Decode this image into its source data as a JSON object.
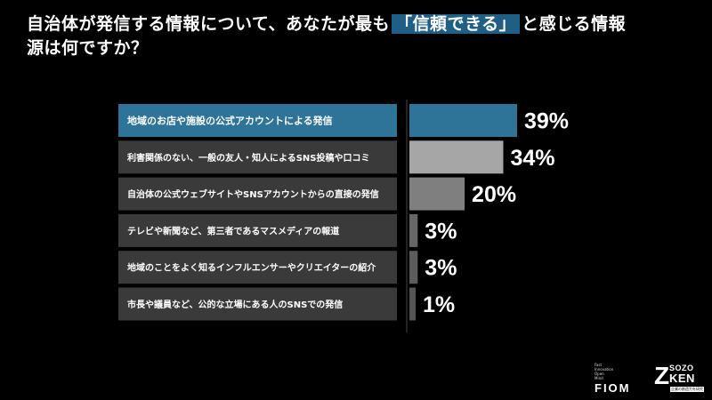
{
  "title": {
    "line1_pre": "自治体が発信する情報について、あなたが最も",
    "highlight": "「信頼できる」",
    "line1_post": "と感じる情報",
    "line2": "源は何ですか？"
  },
  "chart_data": {
    "type": "bar",
    "orientation": "horizontal",
    "categories": [
      "地域のお店や施設の公式アカウントによる発信",
      "利害関係のない、一般の友人・知人によるSNS投稿や口コミ",
      "自治体の公式ウェブサイトやSNSアカウントからの直接の発信",
      "テレビや新聞など、第三者であるマスメディアの報道",
      "地域のことをよく知るインフルエンサーやクリエイターの紹介",
      "市長や議員など、公的な立場にある人のSNSでの発信"
    ],
    "values": [
      39,
      34,
      20,
      3,
      3,
      1
    ],
    "value_labels": [
      "39%",
      "34%",
      "20%",
      "3%",
      "3%",
      "1%"
    ],
    "unit": "%",
    "colors": {
      "highlight_bar": "#2d7498",
      "highlight_label_bg": "#2d7498",
      "label_bg": "#3a3a3a",
      "bar_shades": [
        "#2d7498",
        "#a6a6a6",
        "#7f7f7f",
        "#666666",
        "#5c5c5c",
        "#555555"
      ]
    }
  },
  "logos": {
    "fiom_small": [
      "Fast",
      "Innovation",
      "Open",
      "Mind"
    ],
    "fiom_big": "FIOM",
    "zk_z": "Z",
    "zk_top": "SOZO",
    "zk_bottom": "KEN",
    "zk_sub": "企業の創造力を研究"
  }
}
